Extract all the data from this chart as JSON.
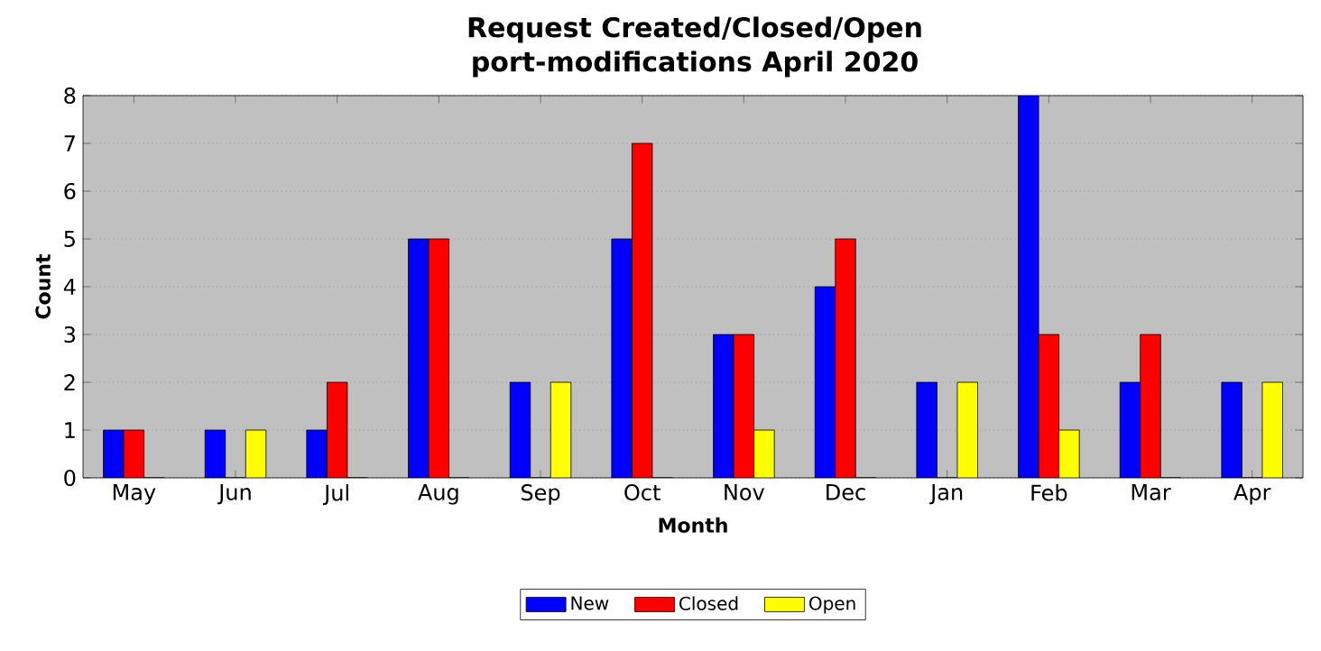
{
  "chart_data": {
    "type": "bar",
    "title": "Request Created/Closed/Open\nport-modifications April 2020",
    "xlabel": "Month",
    "ylabel": "Count",
    "categories": [
      "May",
      "Jun",
      "Jul",
      "Aug",
      "Sep",
      "Oct",
      "Nov",
      "Dec",
      "Jan",
      "Feb",
      "Mar",
      "Apr"
    ],
    "series": [
      {
        "name": "New",
        "color": "#0000ff",
        "values": [
          1,
          1,
          1,
          5,
          2,
          5,
          3,
          4,
          2,
          8,
          2,
          2
        ]
      },
      {
        "name": "Closed",
        "color": "#ff0000",
        "values": [
          1,
          0,
          2,
          5,
          0,
          7,
          3,
          5,
          0,
          3,
          3,
          0
        ]
      },
      {
        "name": "Open",
        "color": "#ffff00",
        "values": [
          0,
          1,
          0,
          0,
          2,
          0,
          1,
          0,
          2,
          1,
          0,
          2
        ]
      }
    ],
    "ylim": [
      0,
      8
    ],
    "yticks": [
      0,
      1,
      2,
      3,
      4,
      5,
      6,
      7,
      8
    ],
    "grid": "y",
    "legend": "bottom"
  }
}
